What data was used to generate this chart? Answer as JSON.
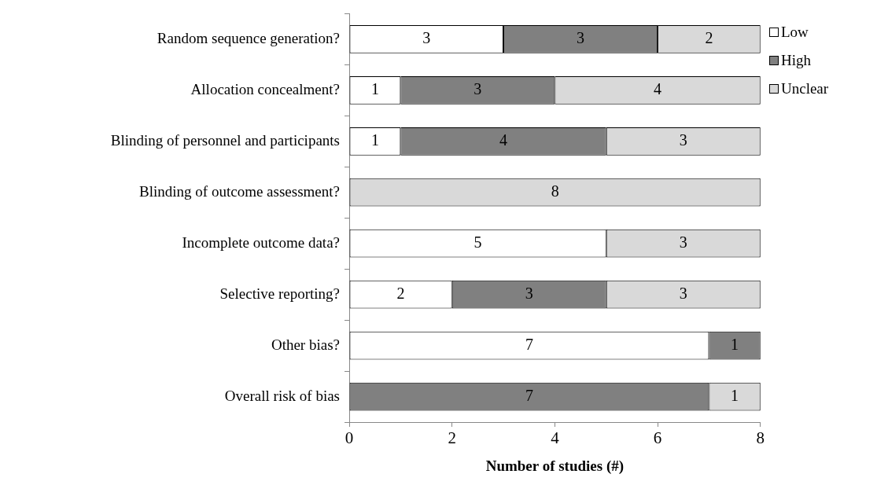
{
  "chart_data": {
    "type": "bar",
    "orientation": "horizontal",
    "stacked": true,
    "categories": [
      "Random sequence generation?",
      "Allocation concealment?",
      "Blinding of personnel and participants",
      "Blinding of outcome assessment?",
      "Incomplete outcome data?",
      "Selective reporting?",
      "Other bias?",
      "Overall risk of bias"
    ],
    "series": [
      {
        "name": "Low",
        "color": "#ffffff",
        "values": [
          3,
          1,
          1,
          null,
          5,
          2,
          7,
          null
        ]
      },
      {
        "name": "High",
        "color": "#808080",
        "values": [
          3,
          3,
          4,
          null,
          null,
          3,
          1,
          7
        ]
      },
      {
        "name": "Unclear",
        "color": "#d9d9d9",
        "values": [
          2,
          4,
          3,
          8,
          3,
          3,
          null,
          1
        ]
      }
    ],
    "xlabel": "Number of studies (#)",
    "xlim": [
      0,
      8
    ],
    "xticks": [
      0,
      2,
      4,
      6,
      8
    ],
    "data_labels": true,
    "grid": false,
    "legend": "right"
  }
}
